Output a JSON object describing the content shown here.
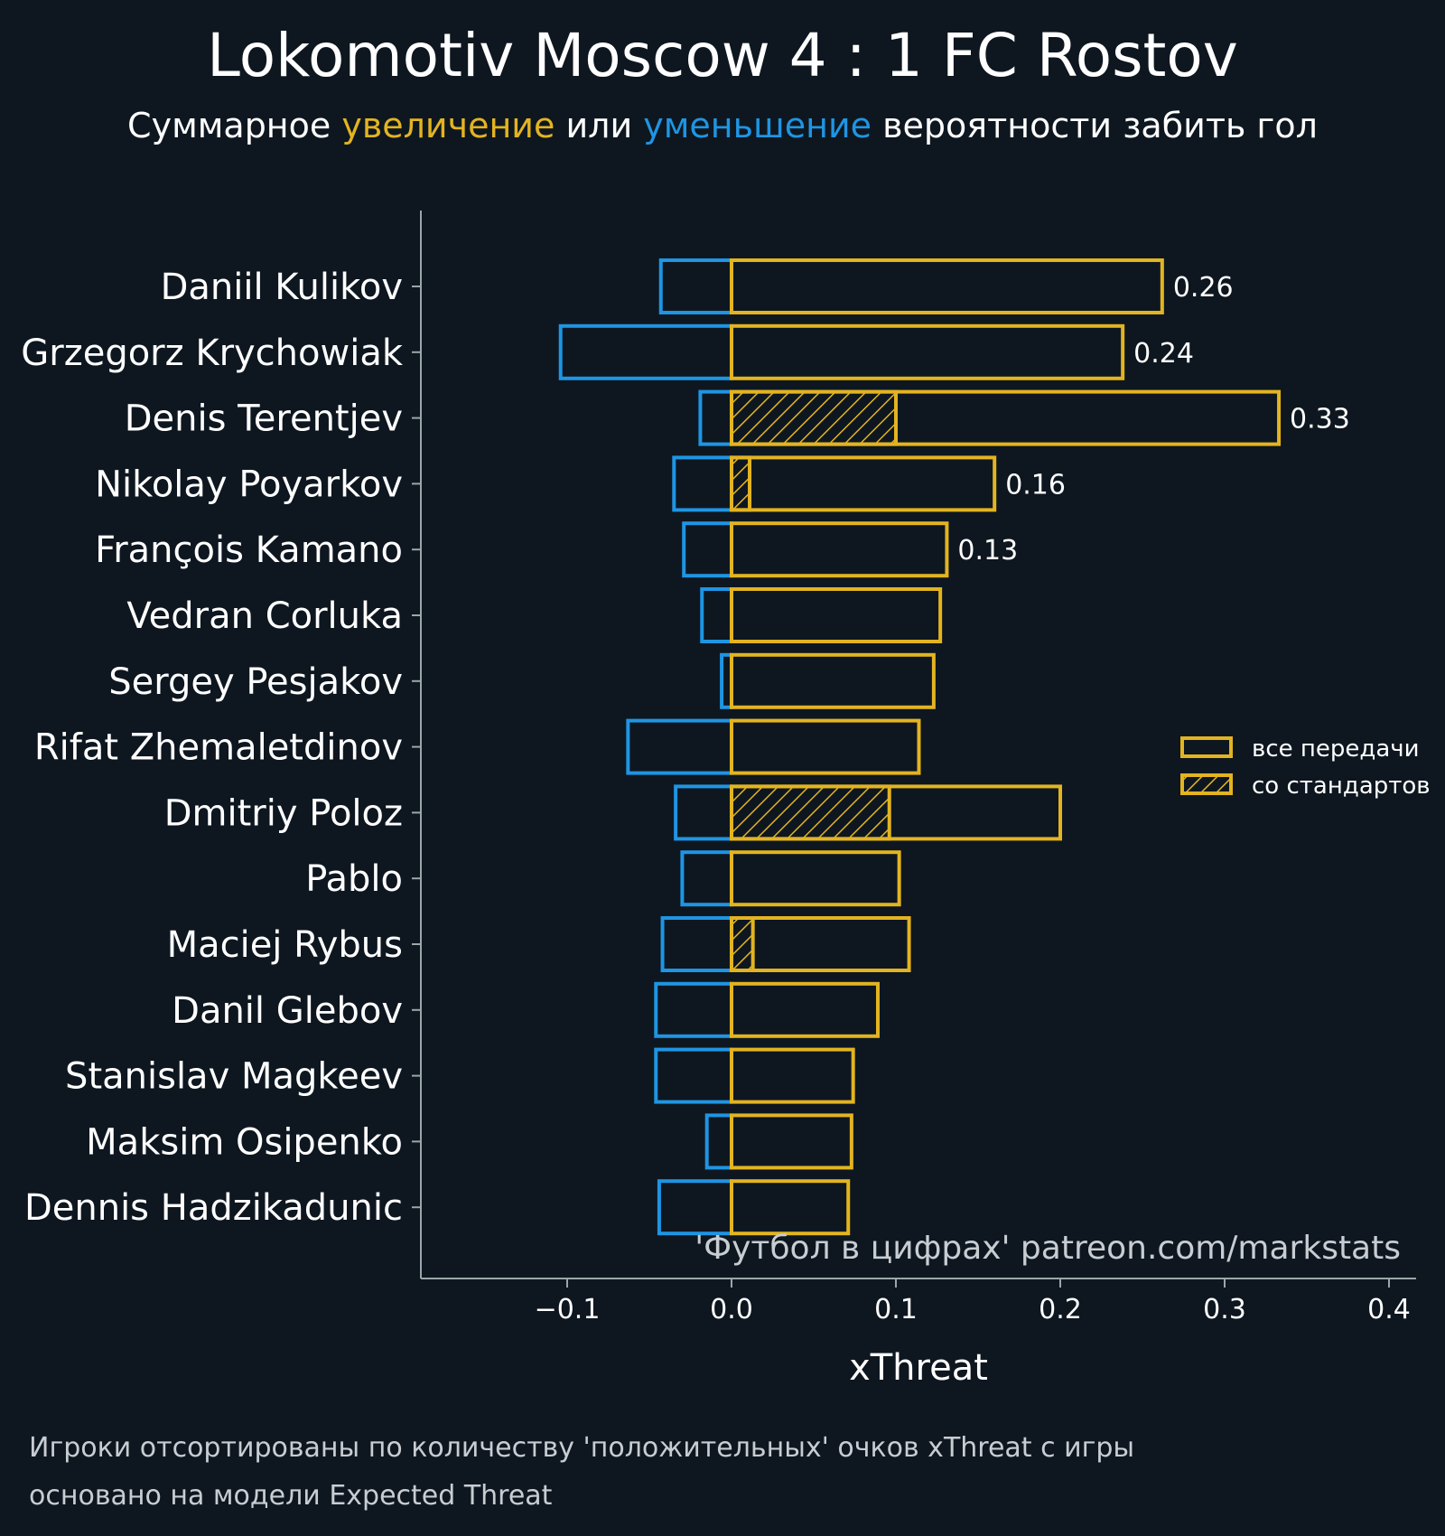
{
  "colors": {
    "background": "#0e1720",
    "positive": "#e3b421",
    "negative": "#1f95e3",
    "axis": "#9aa7a8",
    "muted_text": "#c8cdd2"
  },
  "subtitle": {
    "part1": "Суммарное ",
    "part2": "увеличение",
    "part3": " или ",
    "part4": "уменьшение",
    "part5": " вероятности забить гол"
  },
  "legend": {
    "all_passes": "все передачи",
    "set_pieces": "со стандартов"
  },
  "watermark": "'Футбол в цифрах' patreon.com/markstats",
  "footnote": {
    "line1": "Игроки отсортированы по количеству 'положительных' очков xThreat с игры",
    "line2": "основано на модели Expected Threat"
  },
  "chart_data": {
    "type": "bar",
    "orientation": "horizontal",
    "title": "Lokomotiv Moscow 4 : 1 FC Rostov",
    "xlabel": "xThreat",
    "xlim": [
      -0.19,
      0.42
    ],
    "xticks": [
      -0.1,
      0.0,
      0.1,
      0.2,
      0.3,
      0.4
    ],
    "xtick_labels": [
      "−0.1",
      "0.0",
      "0.1",
      "0.2",
      "0.3",
      "0.4"
    ],
    "legend_position": "right",
    "categories": [
      "Daniil Kulikov",
      "Grzegorz Krychowiak",
      "Denis Terentjev",
      "Nikolay Poyarkov",
      "François Kamano",
      "Vedran Corluka",
      "Sergey Pesjakov",
      "Rifat Zhemaletdinov",
      "Dmitriy Poloz",
      "Pablo",
      "Maciej Rybus",
      "Danil Glebov",
      "Stanislav Magkeev",
      "Maksim Osipenko",
      "Dennis Hadzikadunic"
    ],
    "series": [
      {
        "name": "все передачи",
        "values": [
          0.262,
          0.238,
          0.333,
          0.16,
          0.131,
          0.127,
          0.123,
          0.114,
          0.2,
          0.102,
          0.108,
          0.089,
          0.074,
          0.073,
          0.071
        ]
      },
      {
        "name": "со стандартов",
        "values": [
          0,
          0,
          0.1,
          0.011,
          0,
          0,
          0,
          0,
          0.096,
          0,
          0.013,
          0,
          0,
          0,
          0
        ]
      },
      {
        "values": [
          -0.043,
          -0.104,
          -0.019,
          -0.035,
          -0.029,
          -0.018,
          -0.006,
          -0.063,
          -0.034,
          -0.03,
          -0.042,
          -0.046,
          -0.046,
          -0.015,
          -0.044
        ]
      }
    ],
    "value_labels": [
      "0.26",
      "0.24",
      "0.33",
      "0.16",
      "0.13",
      "",
      "",
      "",
      "",
      "",
      "",
      "",
      "",
      "",
      ""
    ]
  }
}
